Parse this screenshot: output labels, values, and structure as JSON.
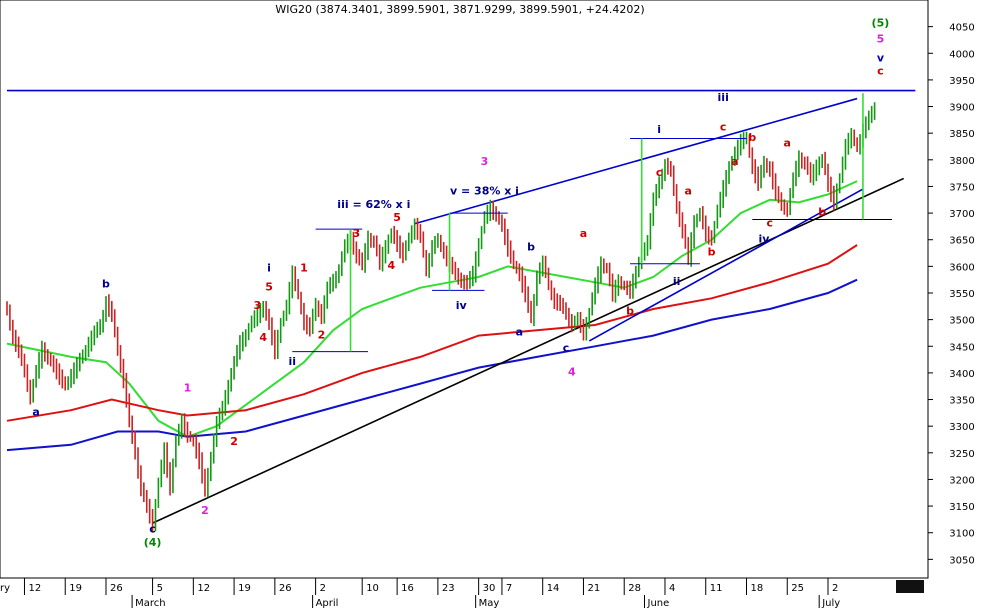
{
  "chart_data": {
    "type": "candlestick",
    "title": "WIG20 (3874.3401, 3899.5901, 3871.9299, 3899.5901, +24.4202)",
    "x_label_left_cut": "ry",
    "ylim": [
      3030,
      4100
    ],
    "yticks": [
      3050,
      3100,
      3150,
      3200,
      3250,
      3300,
      3350,
      3400,
      3450,
      3500,
      3550,
      3600,
      3650,
      3700,
      3750,
      3800,
      3850,
      3900,
      3950,
      4000,
      4050
    ],
    "xticks": [
      {
        "label": "12",
        "day": 2
      },
      {
        "label": "19",
        "day": 9
      },
      {
        "label": "26",
        "day": 16
      },
      {
        "label": "5",
        "day": 24
      },
      {
        "label": "12",
        "day": 31
      },
      {
        "label": "19",
        "day": 38
      },
      {
        "label": "26",
        "day": 45
      },
      {
        "label": "2",
        "day": 52
      },
      {
        "label": "10",
        "day": 60
      },
      {
        "label": "16",
        "day": 66
      },
      {
        "label": "23",
        "day": 73
      },
      {
        "label": "30",
        "day": 80
      },
      {
        "label": "7",
        "day": 84
      },
      {
        "label": "14",
        "day": 91
      },
      {
        "label": "21",
        "day": 98
      },
      {
        "label": "28",
        "day": 105
      },
      {
        "label": "4",
        "day": 112
      },
      {
        "label": "11",
        "day": 119
      },
      {
        "label": "18",
        "day": 126
      },
      {
        "label": "25",
        "day": 133
      },
      {
        "label": "2",
        "day": 140
      }
    ],
    "month_labels": [
      {
        "label": "March",
        "day": 21
      },
      {
        "label": "April",
        "day": 52
      },
      {
        "label": "May",
        "day": 80
      },
      {
        "label": "June",
        "day": 109
      },
      {
        "label": "July",
        "day": 139
      }
    ],
    "price_path": [
      [
        -1,
        3520
      ],
      [
        0,
        3470
      ],
      [
        2,
        3400
      ],
      [
        3,
        3350
      ],
      [
        5,
        3440
      ],
      [
        7,
        3410
      ],
      [
        9,
        3380
      ],
      [
        11,
        3420
      ],
      [
        13,
        3460
      ],
      [
        15,
        3490
      ],
      [
        16,
        3530
      ],
      [
        17,
        3500
      ],
      [
        18,
        3440
      ],
      [
        19,
        3380
      ],
      [
        20,
        3300
      ],
      [
        21,
        3250
      ],
      [
        22,
        3180
      ],
      [
        23,
        3150
      ],
      [
        24,
        3120
      ],
      [
        25,
        3200
      ],
      [
        26,
        3260
      ],
      [
        27,
        3190
      ],
      [
        28,
        3280
      ],
      [
        29,
        3310
      ],
      [
        30,
        3280
      ],
      [
        31,
        3270
      ],
      [
        32,
        3230
      ],
      [
        33,
        3170
      ],
      [
        34,
        3240
      ],
      [
        35,
        3300
      ],
      [
        36,
        3330
      ],
      [
        37,
        3380
      ],
      [
        38,
        3420
      ],
      [
        39,
        3460
      ],
      [
        41,
        3500
      ],
      [
        43,
        3530
      ],
      [
        44,
        3490
      ],
      [
        45,
        3440
      ],
      [
        46,
        3490
      ],
      [
        47,
        3520
      ],
      [
        48,
        3580
      ],
      [
        49,
        3540
      ],
      [
        50,
        3490
      ],
      [
        51,
        3480
      ],
      [
        52,
        3530
      ],
      [
        53,
        3510
      ],
      [
        54,
        3560
      ],
      [
        56,
        3600
      ],
      [
        57,
        3640
      ],
      [
        58,
        3660
      ],
      [
        59,
        3620
      ],
      [
        60,
        3600
      ],
      [
        61,
        3650
      ],
      [
        62,
        3640
      ],
      [
        63,
        3600
      ],
      [
        64,
        3630
      ],
      [
        65,
        3660
      ],
      [
        66,
        3640
      ],
      [
        67,
        3620
      ],
      [
        68,
        3660
      ],
      [
        69,
        3680
      ],
      [
        70,
        3660
      ],
      [
        71,
        3600
      ],
      [
        72,
        3640
      ],
      [
        73,
        3650
      ],
      [
        74,
        3630
      ],
      [
        75,
        3600
      ],
      [
        76,
        3580
      ],
      [
        77,
        3570
      ],
      [
        78,
        3560
      ],
      [
        79,
        3580
      ],
      [
        80,
        3640
      ],
      [
        81,
        3690
      ],
      [
        82,
        3710
      ],
      [
        83,
        3700
      ],
      [
        84,
        3680
      ],
      [
        85,
        3640
      ],
      [
        86,
        3610
      ],
      [
        87,
        3590
      ],
      [
        88,
        3550
      ],
      [
        89,
        3500
      ],
      [
        90,
        3580
      ],
      [
        91,
        3600
      ],
      [
        92,
        3560
      ],
      [
        93,
        3530
      ],
      [
        94,
        3520
      ],
      [
        95,
        3510
      ],
      [
        96,
        3490
      ],
      [
        97,
        3500
      ],
      [
        98,
        3480
      ],
      [
        99,
        3520
      ],
      [
        100,
        3570
      ],
      [
        101,
        3610
      ],
      [
        102,
        3600
      ],
      [
        103,
        3550
      ],
      [
        104,
        3570
      ],
      [
        105,
        3560
      ],
      [
        106,
        3550
      ],
      [
        107,
        3580
      ],
      [
        108,
        3620
      ],
      [
        109,
        3640
      ],
      [
        110,
        3720
      ],
      [
        111,
        3760
      ],
      [
        112,
        3790
      ],
      [
        113,
        3780
      ],
      [
        114,
        3720
      ],
      [
        115,
        3670
      ],
      [
        116,
        3620
      ],
      [
        117,
        3690
      ],
      [
        118,
        3700
      ],
      [
        119,
        3660
      ],
      [
        120,
        3650
      ],
      [
        121,
        3700
      ],
      [
        122,
        3740
      ],
      [
        123,
        3780
      ],
      [
        124,
        3810
      ],
      [
        125,
        3830
      ],
      [
        126,
        3840
      ],
      [
        127,
        3790
      ],
      [
        128,
        3760
      ],
      [
        129,
        3800
      ],
      [
        130,
        3790
      ],
      [
        131,
        3740
      ],
      [
        132,
        3720
      ],
      [
        133,
        3710
      ],
      [
        134,
        3760
      ],
      [
        135,
        3800
      ],
      [
        136,
        3790
      ],
      [
        137,
        3760
      ],
      [
        138,
        3780
      ],
      [
        139,
        3800
      ],
      [
        140,
        3750
      ],
      [
        141,
        3720
      ],
      [
        142,
        3770
      ],
      [
        143,
        3830
      ],
      [
        144,
        3850
      ],
      [
        145,
        3830
      ],
      [
        146,
        3860
      ],
      [
        147,
        3880
      ],
      [
        148,
        3900
      ]
    ],
    "moving_averages": [
      {
        "color": "#33dd33",
        "points": [
          [
            -1,
            3455
          ],
          [
            10,
            3430
          ],
          [
            16,
            3420
          ],
          [
            20,
            3380
          ],
          [
            25,
            3310
          ],
          [
            30,
            3280
          ],
          [
            35,
            3300
          ],
          [
            40,
            3340
          ],
          [
            45,
            3380
          ],
          [
            50,
            3420
          ],
          [
            55,
            3480
          ],
          [
            60,
            3520
          ],
          [
            65,
            3540
          ],
          [
            70,
            3560
          ],
          [
            75,
            3570
          ],
          [
            80,
            3580
          ],
          [
            85,
            3600
          ],
          [
            90,
            3590
          ],
          [
            95,
            3580
          ],
          [
            100,
            3570
          ],
          [
            105,
            3560
          ],
          [
            110,
            3580
          ],
          [
            115,
            3620
          ],
          [
            120,
            3650
          ],
          [
            125,
            3700
          ],
          [
            130,
            3725
          ],
          [
            135,
            3720
          ],
          [
            140,
            3735
          ],
          [
            145,
            3760
          ]
        ]
      },
      {
        "color": "#dd1111",
        "points": [
          [
            -1,
            3310
          ],
          [
            10,
            3330
          ],
          [
            17,
            3350
          ],
          [
            25,
            3330
          ],
          [
            30,
            3320
          ],
          [
            40,
            3330
          ],
          [
            50,
            3360
          ],
          [
            60,
            3400
          ],
          [
            70,
            3430
          ],
          [
            80,
            3470
          ],
          [
            90,
            3480
          ],
          [
            100,
            3490
          ],
          [
            110,
            3520
          ],
          [
            120,
            3540
          ],
          [
            130,
            3570
          ],
          [
            140,
            3605
          ],
          [
            145,
            3640
          ]
        ]
      },
      {
        "color": "#1111cc",
        "points": [
          [
            -1,
            3255
          ],
          [
            10,
            3265
          ],
          [
            18,
            3290
          ],
          [
            25,
            3290
          ],
          [
            30,
            3280
          ],
          [
            40,
            3290
          ],
          [
            50,
            3320
          ],
          [
            60,
            3350
          ],
          [
            70,
            3380
          ],
          [
            80,
            3410
          ],
          [
            90,
            3430
          ],
          [
            100,
            3450
          ],
          [
            110,
            3470
          ],
          [
            120,
            3500
          ],
          [
            130,
            3520
          ],
          [
            140,
            3550
          ],
          [
            145,
            3575
          ]
        ]
      }
    ],
    "trend_lines": [
      {
        "color": "#000000",
        "from": [
          24,
          3118
        ],
        "to": [
          153,
          3765
        ]
      },
      {
        "color": "#0000cc",
        "from": [
          69,
          3680
        ],
        "to": [
          145,
          3915
        ]
      },
      {
        "color": "#0000cc",
        "from": [
          99,
          3460
        ],
        "to": [
          146,
          3745
        ]
      },
      {
        "color": "#0000cc",
        "from": [
          -1,
          3930
        ],
        "to": [
          155,
          3930
        ]
      }
    ],
    "horizontal_levels": [
      {
        "color": "#0000cc",
        "from": [
          52,
          3670
        ],
        "to": [
          60,
          3670
        ]
      },
      {
        "color": "#0000cc",
        "from": [
          48,
          3440
        ],
        "to": [
          61,
          3440
        ]
      },
      {
        "color": "#0000cc",
        "from": [
          72,
          3555
        ],
        "to": [
          81,
          3555
        ]
      },
      {
        "color": "#0000cc",
        "from": [
          75,
          3700
        ],
        "to": [
          85,
          3700
        ]
      },
      {
        "color": "#0000cc",
        "from": [
          106,
          3840
        ],
        "to": [
          126,
          3840
        ]
      },
      {
        "color": "#0000cc",
        "from": [
          106,
          3605
        ],
        "to": [
          118,
          3605
        ]
      },
      {
        "color": "#000000",
        "from": [
          127,
          3688
        ],
        "to": [
          151,
          3688
        ]
      }
    ],
    "vertical_ranges": [
      {
        "color": "#33dd33",
        "day": 58,
        "y1": 3440,
        "y2": 3670
      },
      {
        "color": "#33dd33",
        "day": 75,
        "y1": 3555,
        "y2": 3700
      },
      {
        "color": "#33dd33",
        "day": 108,
        "y1": 3605,
        "y2": 3840
      },
      {
        "color": "#33dd33",
        "day": 146,
        "y1": 3688,
        "y2": 3925
      }
    ],
    "wave_labels": [
      {
        "text": "(4)",
        "day": 24,
        "price": 3075,
        "color": "#008800"
      },
      {
        "text": "c",
        "day": 24,
        "price": 3100,
        "color": "#000088"
      },
      {
        "text": "a",
        "day": 4,
        "price": 3320,
        "color": "#000088"
      },
      {
        "text": "b",
        "day": 16,
        "price": 3560,
        "color": "#000088"
      },
      {
        "text": "1",
        "day": 30,
        "price": 3365,
        "color": "#dd22dd"
      },
      {
        "text": "2",
        "day": 33,
        "price": 3135,
        "color": "#dd22dd"
      },
      {
        "text": "2",
        "day": 38,
        "price": 3265,
        "color": "#cc0000"
      },
      {
        "text": "3",
        "day": 42,
        "price": 3520,
        "color": "#cc0000"
      },
      {
        "text": "4",
        "day": 43,
        "price": 3460,
        "color": "#cc0000"
      },
      {
        "text": "5",
        "day": 44,
        "price": 3555,
        "color": "#cc0000"
      },
      {
        "text": "i",
        "day": 44,
        "price": 3590,
        "color": "#000088"
      },
      {
        "text": "ii",
        "day": 48,
        "price": 3415,
        "color": "#000088"
      },
      {
        "text": "1",
        "day": 50,
        "price": 3590,
        "color": "#cc0000"
      },
      {
        "text": "2",
        "day": 53,
        "price": 3465,
        "color": "#cc0000"
      },
      {
        "text": "3",
        "day": 59,
        "price": 3655,
        "color": "#cc0000"
      },
      {
        "text": "4",
        "day": 65,
        "price": 3595,
        "color": "#cc0000"
      },
      {
        "text": "5",
        "day": 66,
        "price": 3685,
        "color": "#cc0000"
      },
      {
        "text": "iii = 62% x i",
        "day": 62,
        "price": 3710,
        "color": "#000088"
      },
      {
        "text": "iv",
        "day": 77,
        "price": 3520,
        "color": "#000088"
      },
      {
        "text": "v = 38% x i",
        "day": 81,
        "price": 3735,
        "color": "#000088"
      },
      {
        "text": "3",
        "day": 81,
        "price": 3790,
        "color": "#dd22dd"
      },
      {
        "text": "a",
        "day": 87,
        "price": 3470,
        "color": "#000088"
      },
      {
        "text": "b",
        "day": 89,
        "price": 3630,
        "color": "#000088"
      },
      {
        "text": "c",
        "day": 95,
        "price": 3440,
        "color": "#000088"
      },
      {
        "text": "4",
        "day": 96,
        "price": 3395,
        "color": "#dd22dd"
      },
      {
        "text": "a",
        "day": 98,
        "price": 3655,
        "color": "#cc0000"
      },
      {
        "text": "b",
        "day": 106,
        "price": 3510,
        "color": "#cc0000"
      },
      {
        "text": "c",
        "day": 111,
        "price": 3770,
        "color": "#cc0000"
      },
      {
        "text": "i",
        "day": 111,
        "price": 3850,
        "color": "#000088"
      },
      {
        "text": "a",
        "day": 116,
        "price": 3735,
        "color": "#cc0000"
      },
      {
        "text": "ii",
        "day": 114,
        "price": 3565,
        "color": "#000088"
      },
      {
        "text": "b",
        "day": 120,
        "price": 3620,
        "color": "#cc0000"
      },
      {
        "text": "c",
        "day": 122,
        "price": 3855,
        "color": "#cc0000"
      },
      {
        "text": "iii",
        "day": 122,
        "price": 3910,
        "color": "#000088"
      },
      {
        "text": "a",
        "day": 124,
        "price": 3790,
        "color": "#cc0000"
      },
      {
        "text": "b",
        "day": 127,
        "price": 3835,
        "color": "#cc0000"
      },
      {
        "text": "c",
        "day": 130,
        "price": 3675,
        "color": "#cc0000"
      },
      {
        "text": "iv",
        "day": 129,
        "price": 3645,
        "color": "#000088"
      },
      {
        "text": "a",
        "day": 133,
        "price": 3825,
        "color": "#cc0000"
      },
      {
        "text": "b",
        "day": 139,
        "price": 3695,
        "color": "#cc0000"
      },
      {
        "text": "c",
        "day": 149,
        "price": 3960,
        "color": "#cc0000"
      },
      {
        "text": "v",
        "day": 149,
        "price": 3985,
        "color": "#0000cc"
      },
      {
        "text": "5",
        "day": 149,
        "price": 4020,
        "color": "#dd22dd"
      },
      {
        "text": "(5)",
        "day": 149,
        "price": 4050,
        "color": "#008800"
      }
    ]
  }
}
